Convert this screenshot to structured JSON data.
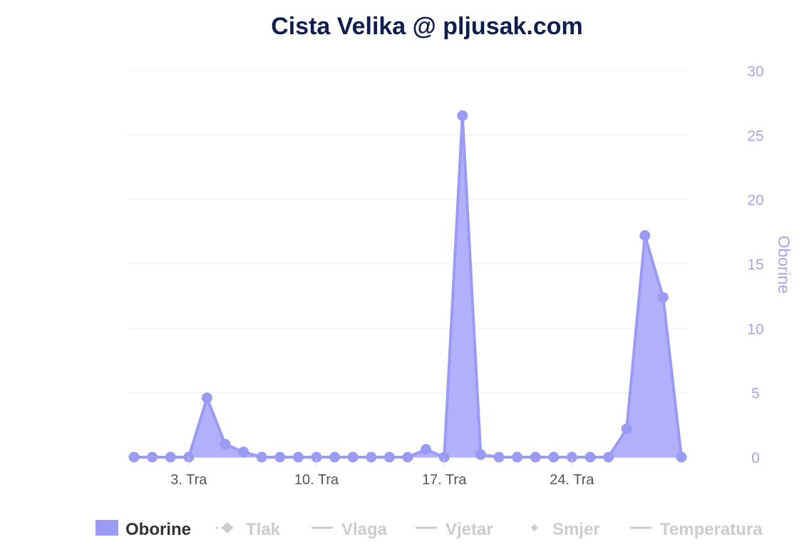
{
  "chart_data": {
    "type": "area",
    "title": "Cista Velika @ pljusak.com",
    "ylabel": "Oborine",
    "ylim": [
      0,
      30
    ],
    "y_ticks": [
      "0",
      "5",
      "10",
      "15",
      "20",
      "25",
      "30"
    ],
    "y_tick_values": [
      0,
      5,
      10,
      15,
      20,
      25,
      30
    ],
    "x_range": [
      0,
      30
    ],
    "x_ticks": [
      {
        "label": "3. Tra",
        "x": 3
      },
      {
        "label": "10. Tra",
        "x": 10
      },
      {
        "label": "17. Tra",
        "x": 17
      },
      {
        "label": "24. Tra",
        "x": 24
      }
    ],
    "grid": true,
    "legend_position": "bottom",
    "series": [
      {
        "name": "Oborine",
        "color": "#9b9bf6",
        "x": [
          0,
          1,
          2,
          3,
          4,
          5,
          6,
          7,
          8,
          9,
          10,
          11,
          12,
          13,
          14,
          15,
          16,
          17,
          18,
          19,
          20,
          21,
          22,
          23,
          24,
          25,
          26,
          27,
          28,
          29,
          30
        ],
        "values": [
          0,
          0,
          0,
          0,
          4.6,
          1,
          0.4,
          0,
          0,
          0,
          0,
          0,
          0,
          0,
          0,
          0,
          0.6,
          0,
          26.5,
          0.2,
          0,
          0,
          0,
          0,
          0,
          0,
          0,
          2.2,
          17.2,
          12.4,
          0
        ]
      }
    ],
    "legend": [
      {
        "label": "Oborine",
        "symbol": "rect",
        "active": true,
        "color": "#9b9bf6"
      },
      {
        "label": "Tlak",
        "symbol": "dashed-diamond",
        "active": false,
        "color": "#cccccc"
      },
      {
        "label": "Vlaga",
        "symbol": "line",
        "active": false,
        "color": "#cccccc"
      },
      {
        "label": "Vjetar",
        "symbol": "line",
        "active": false,
        "color": "#cccccc"
      },
      {
        "label": "Smjer",
        "symbol": "diamond",
        "active": false,
        "color": "#cccccc"
      },
      {
        "label": "Temperatura",
        "symbol": "line",
        "active": false,
        "color": "#cccccc"
      }
    ]
  }
}
